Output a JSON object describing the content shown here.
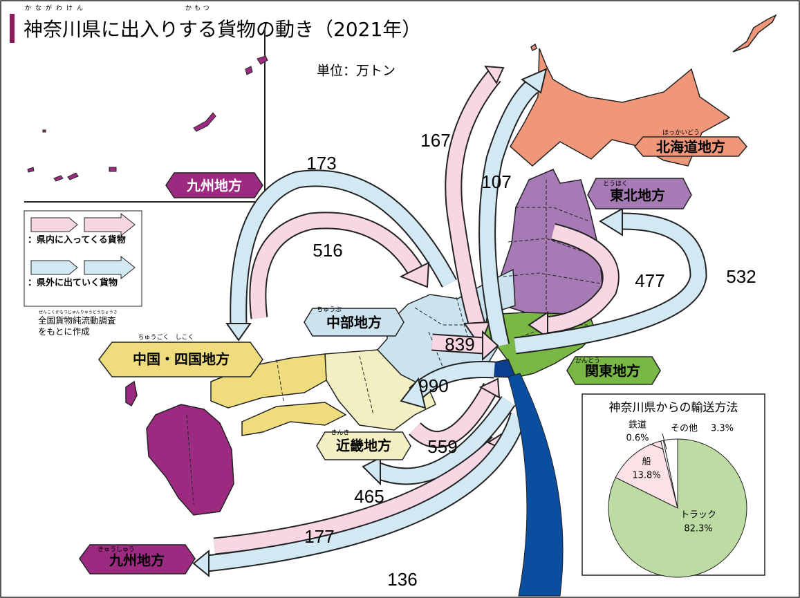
{
  "title": "神奈川県に出入りする貨物の動き（2021年）",
  "title_ruby": [
    "かながわけん",
    "かもつ"
  ],
  "unit": "単位：万トン",
  "legend": {
    "incoming": "：県内に入ってくる貨物",
    "outgoing": "：県外に出ていく貨物"
  },
  "source": "全国貨物純流動調査をもとに作成",
  "source_ruby": "ぜんこくかもつじゅんりゅうどうちょうさ",
  "regions": [
    {
      "name": "北海道地方",
      "ruby": "ほっかいどう"
    },
    {
      "name": "東北地方",
      "ruby": "とうほく"
    },
    {
      "name": "関東地方",
      "ruby": "かんとう"
    },
    {
      "name": "中部地方",
      "ruby": "ちゅうぶ"
    },
    {
      "name": "近畿地方",
      "ruby": "きんき"
    },
    {
      "name": "中国・四国地方",
      "ruby": "ちゅうごく　しこく"
    },
    {
      "name": "九州地方",
      "ruby": "きゅうしゅう"
    },
    {
      "name": "九州地方"
    }
  ],
  "flows": [
    167,
    107,
    173,
    516,
    477,
    532,
    839,
    990,
    559,
    465,
    177,
    136
  ],
  "chart_data": {
    "type": "pie",
    "title": "神奈川県からの輸送方法",
    "categories": [
      "トラック",
      "船",
      "鉄道",
      "その他"
    ],
    "values": [
      82.3,
      13.8,
      0.6,
      3.3
    ],
    "value_labels": [
      "82.3%",
      "13.8%",
      "0.6%",
      "3.3%"
    ],
    "colors": [
      "#bcdca4",
      "#fbe2e6",
      "#ffffff",
      "#ffffff"
    ]
  }
}
